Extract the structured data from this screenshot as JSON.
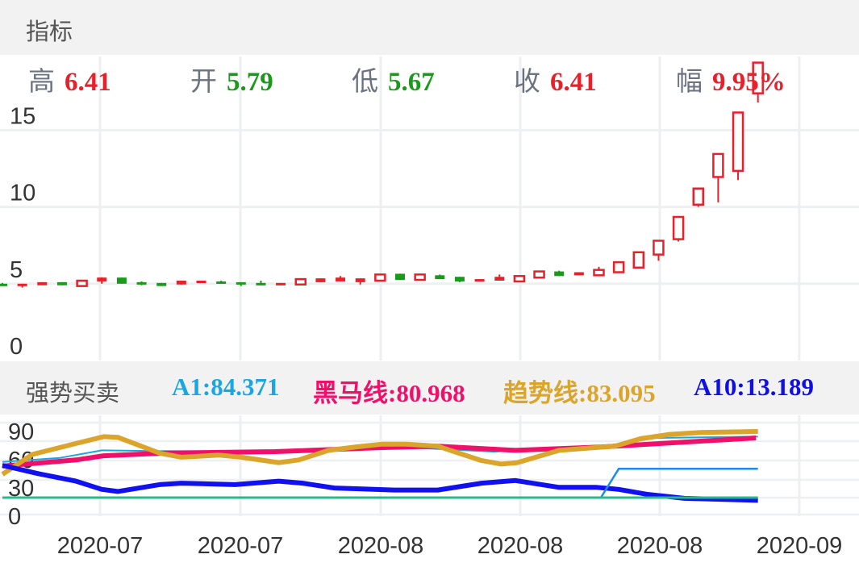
{
  "header": {
    "title": "指标"
  },
  "quote": [
    {
      "label": "高",
      "value": "6.41",
      "color": "#e8202a"
    },
    {
      "label": "开",
      "value": "5.79",
      "color": "#1a9a1a"
    },
    {
      "label": "低",
      "value": "5.67",
      "color": "#1a9a1a"
    },
    {
      "label": "收",
      "value": "6.41",
      "color": "#e8202a"
    },
    {
      "label": "幅",
      "value": "9.95%",
      "color": "#e8202a"
    }
  ],
  "indicator": {
    "name": "强势买卖",
    "items": [
      {
        "text": "A1:84.371",
        "color": "#1aa6e0"
      },
      {
        "text": "黑马线:80.968",
        "color": "#f0106a"
      },
      {
        "text": "趋势线:83.095",
        "color": "#dba42a"
      },
      {
        "text": "A10:13.189",
        "color": "#1010e0"
      }
    ]
  },
  "chart_data": [
    {
      "type": "candlestick",
      "ylim": [
        0,
        19.8
      ],
      "y_ticks": [
        "0",
        "5",
        "10",
        "15"
      ],
      "up_color": "#e8202a",
      "down_color": "#1a9a1a",
      "ohlc": [
        [
          5.0,
          5.05,
          4.85,
          4.85
        ],
        [
          4.85,
          5.0,
          4.75,
          5.0
        ],
        [
          4.9,
          5.1,
          4.9,
          5.1
        ],
        [
          5.1,
          5.1,
          4.9,
          4.9
        ],
        [
          4.85,
          5.2,
          4.85,
          5.2
        ],
        [
          5.15,
          5.42,
          5.0,
          5.4
        ],
        [
          5.4,
          5.4,
          5.0,
          5.0
        ],
        [
          5.1,
          5.15,
          4.9,
          4.95
        ],
        [
          5.05,
          5.05,
          4.85,
          4.85
        ],
        [
          4.95,
          5.2,
          4.95,
          5.2
        ],
        [
          5.05,
          5.2,
          5.05,
          5.2
        ],
        [
          5.15,
          5.2,
          5.0,
          5.0
        ],
        [
          5.1,
          5.1,
          4.85,
          4.95
        ],
        [
          5.05,
          5.2,
          4.9,
          4.9
        ],
        [
          4.9,
          5.05,
          4.9,
          5.05
        ],
        [
          4.95,
          5.3,
          4.95,
          5.3
        ],
        [
          5.1,
          5.35,
          5.1,
          5.35
        ],
        [
          5.15,
          5.5,
          5.15,
          5.4
        ],
        [
          5.1,
          5.35,
          4.95,
          5.35
        ],
        [
          5.2,
          5.6,
          5.2,
          5.6
        ],
        [
          5.65,
          5.65,
          5.25,
          5.25
        ],
        [
          5.25,
          5.6,
          5.25,
          5.6
        ],
        [
          5.55,
          5.6,
          5.3,
          5.3
        ],
        [
          5.45,
          5.45,
          5.1,
          5.15
        ],
        [
          5.2,
          5.3,
          5.2,
          5.3
        ],
        [
          5.2,
          5.6,
          5.2,
          5.45
        ],
        [
          5.15,
          5.5,
          5.15,
          5.5
        ],
        [
          5.4,
          5.8,
          5.35,
          5.8
        ],
        [
          5.8,
          5.85,
          5.5,
          5.5
        ],
        [
          5.55,
          5.75,
          5.55,
          5.75
        ],
        [
          5.55,
          6.1,
          5.55,
          5.9
        ],
        [
          5.75,
          6.4,
          5.7,
          6.4
        ],
        [
          6.05,
          7.05,
          6.05,
          7.05
        ],
        [
          6.9,
          7.8,
          6.5,
          7.8
        ],
        [
          7.9,
          9.35,
          7.75,
          9.35
        ],
        [
          10.15,
          11.2,
          10.0,
          11.2
        ],
        [
          11.95,
          13.45,
          10.3,
          13.45
        ],
        [
          12.35,
          16.15,
          11.75,
          16.15
        ],
        [
          17.4,
          19.4,
          16.8,
          19.4
        ]
      ]
    },
    {
      "type": "line",
      "title": "强势买卖",
      "y_ticks": [
        "90",
        "60",
        "30",
        "0"
      ],
      "x_ticks": [
        "2020-07",
        "2020-07",
        "2020-08",
        "2020-08",
        "2020-08",
        "2020-09"
      ],
      "series": [
        {
          "name": "A1",
          "color": "#1aa6e0",
          "width": 2,
          "points": [
            [
              0,
              52
            ],
            [
              2.9,
              58
            ],
            [
              5,
              69
            ],
            [
              7.6,
              68
            ],
            [
              13.7,
              67
            ],
            [
              19.1,
              75
            ],
            [
              24.7,
              67
            ],
            [
              30.2,
              75
            ],
            [
              32.9,
              87
            ],
            [
              38,
              89
            ]
          ]
        },
        {
          "name": "黑马线",
          "color": "#f0106a",
          "width": 6,
          "points": [
            [
              0,
              46
            ],
            [
              3.7,
              55
            ],
            [
              5.1,
              61
            ],
            [
              8.2,
              65
            ],
            [
              13.7,
              67
            ],
            [
              19.1,
              73
            ],
            [
              21.9,
              75
            ],
            [
              25.8,
              69
            ],
            [
              30.2,
              74
            ],
            [
              37.9,
              87
            ]
          ]
        },
        {
          "name": "趋势线",
          "color": "#dba42a",
          "width": 6,
          "points": [
            [
              0,
              34
            ],
            [
              1.5,
              63
            ],
            [
              3.7,
              79
            ],
            [
              5.1,
              89
            ],
            [
              5.8,
              88
            ],
            [
              7.9,
              65
            ],
            [
              9,
              59
            ],
            [
              10.9,
              62
            ],
            [
              12,
              59
            ],
            [
              13.9,
              51
            ],
            [
              14.9,
              55
            ],
            [
              16.4,
              69
            ],
            [
              17.8,
              74
            ],
            [
              19.1,
              78
            ],
            [
              20.3,
              78
            ],
            [
              21.9,
              75
            ],
            [
              24.1,
              54
            ],
            [
              25.1,
              49
            ],
            [
              25.9,
              51
            ],
            [
              28,
              69
            ],
            [
              29.4,
              72
            ],
            [
              30.8,
              75
            ],
            [
              32.1,
              86
            ],
            [
              33.5,
              92
            ],
            [
              35.1,
              95
            ],
            [
              38,
              96.5
            ]
          ]
        },
        {
          "name": "A10",
          "color": "#1010f0",
          "width": 6,
          "points": [
            [
              0,
              47
            ],
            [
              1.8,
              35
            ],
            [
              3.7,
              24
            ],
            [
              5,
              12
            ],
            [
              5.8,
              9
            ],
            [
              7.9,
              19
            ],
            [
              9,
              21
            ],
            [
              11.7,
              19
            ],
            [
              13.9,
              24
            ],
            [
              15.1,
              21
            ],
            [
              16.7,
              14
            ],
            [
              17.8,
              13
            ],
            [
              19.7,
              11
            ],
            [
              21.9,
              11
            ],
            [
              24.1,
              21
            ],
            [
              25.8,
              25
            ],
            [
              28,
              15
            ],
            [
              29.9,
              15
            ],
            [
              31,
              12
            ],
            [
              32.4,
              5
            ],
            [
              34.3,
              -1
            ],
            [
              38,
              -4
            ]
          ]
        },
        {
          "color": "#1a8cf0",
          "width": 2.5,
          "points": [
            [
              0,
              0
            ],
            [
              30.1,
              0
            ],
            [
              31,
              42
            ],
            [
              38,
              42
            ]
          ]
        },
        {
          "color": "#2ab88a",
          "width": 3,
          "points": [
            [
              0,
              0
            ],
            [
              38,
              0
            ]
          ]
        }
      ]
    }
  ]
}
